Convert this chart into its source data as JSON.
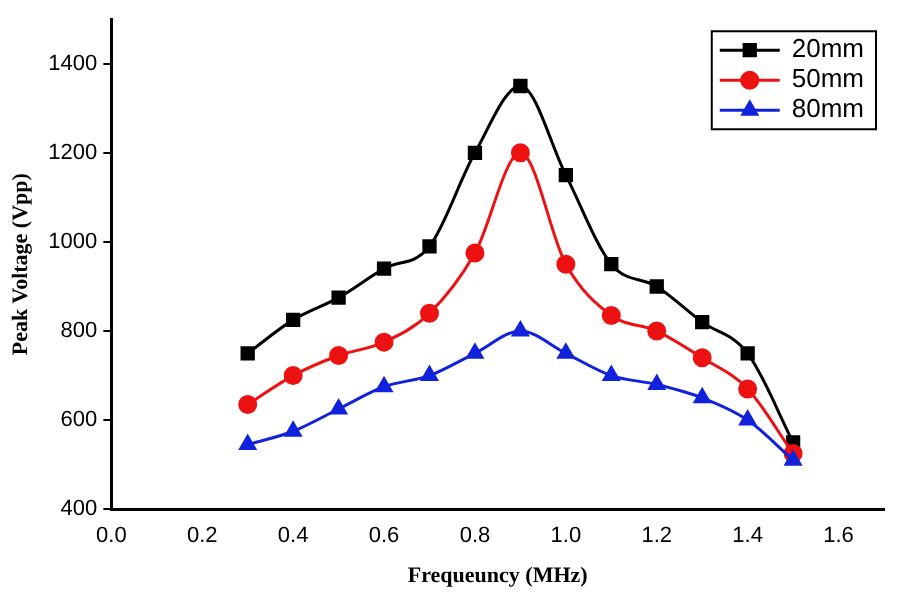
{
  "chart_data": {
    "type": "line",
    "xlabel": "Frequeuncy (MHz)",
    "ylabel": "Peak Voltage (Vpp)",
    "x": [
      0.3,
      0.4,
      0.5,
      0.6,
      0.7,
      0.8,
      0.9,
      1.0,
      1.1,
      1.2,
      1.3,
      1.4,
      1.5
    ],
    "series": [
      {
        "name": "20mm",
        "color": "#000000",
        "marker": "square",
        "values": [
          750,
          825,
          875,
          940,
          990,
          1200,
          1350,
          1150,
          950,
          900,
          820,
          750,
          550
        ]
      },
      {
        "name": "50mm",
        "color": "#ee1111",
        "marker": "circle",
        "values": [
          635,
          700,
          745,
          775,
          840,
          975,
          1200,
          950,
          835,
          800,
          740,
          670,
          525
        ]
      },
      {
        "name": "80mm",
        "color": "#1122dd",
        "marker": "triangle",
        "values": [
          545,
          575,
          625,
          675,
          700,
          750,
          800,
          750,
          700,
          680,
          650,
          600,
          510
        ]
      }
    ],
    "xlim": [
      0,
      1.7
    ],
    "xticks": [
      {
        "value": 0,
        "label": "0.0"
      },
      0.2,
      0.4,
      0.6,
      0.8,
      {
        "value": 1,
        "label": "1.0"
      },
      1.2,
      1.4,
      1.6
    ],
    "ylim": [
      400,
      1500
    ],
    "yticks": [
      400,
      600,
      800,
      1000,
      1200,
      1400
    ],
    "grid": false,
    "legend": "top right"
  }
}
